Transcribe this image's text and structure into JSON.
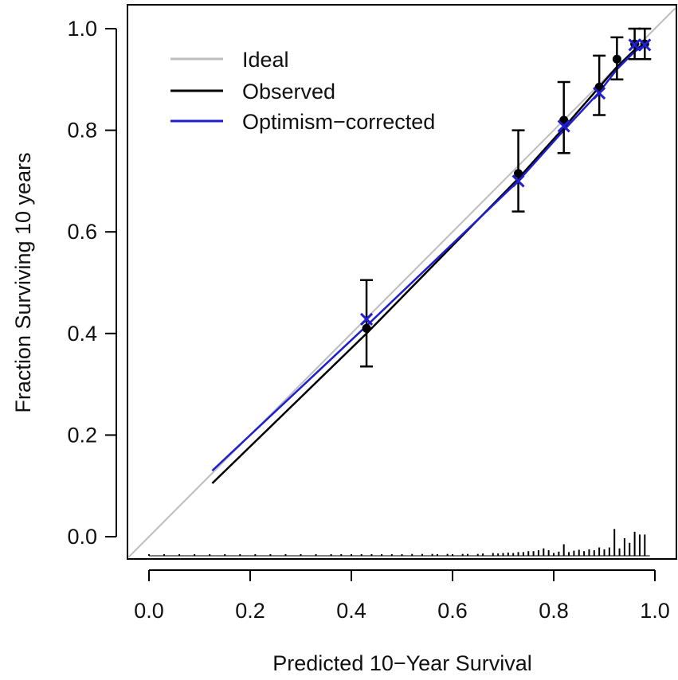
{
  "chart_data": {
    "type": "line",
    "title": "",
    "xlabel": "Predicted 10−Year Survival",
    "ylabel": "Fraction Surviving 10 years",
    "xlim": [
      0.0,
      1.0
    ],
    "ylim": [
      0.0,
      1.0
    ],
    "x_ticks": [
      "0.0",
      "0.2",
      "0.4",
      "0.6",
      "0.8",
      "1.0"
    ],
    "y_ticks": [
      "0.0",
      "0.2",
      "0.4",
      "0.6",
      "0.8",
      "1.0"
    ],
    "legend_position": "top-left",
    "grid": false,
    "series": [
      {
        "name": "Ideal",
        "color": "#bdbdbd",
        "line": [
          [
            -0.04,
            -0.04
          ],
          [
            1.04,
            1.04
          ]
        ]
      },
      {
        "name": "Observed",
        "color": "#000000",
        "line": [
          [
            0.125,
            0.105
          ],
          [
            0.43,
            0.4
          ],
          [
            0.73,
            0.705
          ],
          [
            0.82,
            0.805
          ],
          [
            0.89,
            0.885
          ],
          [
            0.925,
            0.925
          ],
          [
            0.96,
            0.958
          ],
          [
            0.98,
            0.97
          ]
        ],
        "points": [
          {
            "x": 0.43,
            "y": 0.41,
            "lo": 0.335,
            "hi": 0.505
          },
          {
            "x": 0.73,
            "y": 0.715,
            "lo": 0.64,
            "hi": 0.8
          },
          {
            "x": 0.82,
            "y": 0.82,
            "lo": 0.755,
            "hi": 0.895
          },
          {
            "x": 0.89,
            "y": 0.885,
            "lo": 0.83,
            "hi": 0.947
          },
          {
            "x": 0.925,
            "y": 0.94,
            "lo": 0.9,
            "hi": 0.983
          },
          {
            "x": 0.96,
            "y": 0.97,
            "lo": 0.94,
            "hi": 1.0
          },
          {
            "x": 0.98,
            "y": 0.97,
            "lo": 0.94,
            "hi": 1.0
          }
        ]
      },
      {
        "name": "Optimism−corrected",
        "color": "#1f1fd0",
        "line": [
          [
            0.125,
            0.13
          ],
          [
            0.43,
            0.415
          ],
          [
            0.73,
            0.7
          ],
          [
            0.82,
            0.8
          ],
          [
            0.89,
            0.875
          ],
          [
            0.925,
            0.92
          ],
          [
            0.96,
            0.955
          ],
          [
            0.98,
            0.968
          ]
        ],
        "points": [
          {
            "x": 0.43,
            "y": 0.428
          },
          {
            "x": 0.73,
            "y": 0.7
          },
          {
            "x": 0.82,
            "y": 0.808
          },
          {
            "x": 0.89,
            "y": 0.873
          },
          {
            "x": 0.96,
            "y": 0.968
          },
          {
            "x": 0.98,
            "y": 0.968
          }
        ]
      }
    ],
    "rug_histogram": {
      "color": "#000000",
      "x": [
        0.0,
        0.03,
        0.06,
        0.09,
        0.12,
        0.15,
        0.18,
        0.21,
        0.24,
        0.27,
        0.3,
        0.33,
        0.36,
        0.38,
        0.4,
        0.42,
        0.44,
        0.46,
        0.48,
        0.5,
        0.52,
        0.54,
        0.56,
        0.57,
        0.59,
        0.6,
        0.62,
        0.63,
        0.65,
        0.66,
        0.68,
        0.69,
        0.7,
        0.71,
        0.72,
        0.73,
        0.74,
        0.75,
        0.76,
        0.77,
        0.78,
        0.79,
        0.8,
        0.81,
        0.82,
        0.83,
        0.84,
        0.85,
        0.86,
        0.87,
        0.88,
        0.89,
        0.9,
        0.91,
        0.92,
        0.93,
        0.94,
        0.95,
        0.96,
        0.97,
        0.98
      ],
      "height": [
        0.002,
        0.002,
        0.002,
        0.002,
        0.002,
        0.002,
        0.002,
        0.002,
        0.002,
        0.002,
        0.003,
        0.002,
        0.003,
        0.003,
        0.003,
        0.003,
        0.003,
        0.003,
        0.003,
        0.003,
        0.004,
        0.004,
        0.004,
        0.003,
        0.004,
        0.003,
        0.004,
        0.004,
        0.004,
        0.005,
        0.006,
        0.005,
        0.006,
        0.007,
        0.006,
        0.008,
        0.008,
        0.01,
        0.01,
        0.012,
        0.016,
        0.012,
        0.006,
        0.009,
        0.025,
        0.008,
        0.011,
        0.013,
        0.01,
        0.014,
        0.012,
        0.018,
        0.014,
        0.018,
        0.058,
        0.016,
        0.038,
        0.028,
        0.052,
        0.046,
        0.046
      ]
    }
  }
}
